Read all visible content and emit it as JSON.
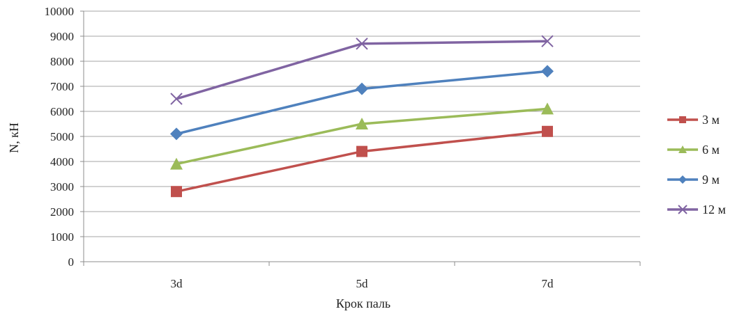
{
  "chart_data": {
    "type": "line",
    "categories": [
      "3d",
      "5d",
      "7d"
    ],
    "series": [
      {
        "name": "3 м",
        "values": [
          2800,
          4400,
          5200
        ],
        "color": "#c0504d",
        "marker": "square"
      },
      {
        "name": "6 м",
        "values": [
          3900,
          5500,
          6100
        ],
        "color": "#9bbb59",
        "marker": "triangle"
      },
      {
        "name": "9 м",
        "values": [
          5100,
          6900,
          7600
        ],
        "color": "#4f81bd",
        "marker": "diamond"
      },
      {
        "name": "12 м",
        "values": [
          6500,
          8700,
          8800
        ],
        "color": "#8064a2",
        "marker": "x"
      }
    ],
    "yticks": [
      "0",
      "1000",
      "2000",
      "3000",
      "4000",
      "5000",
      "6000",
      "7000",
      "8000",
      "9000",
      "10000"
    ],
    "ylim": [
      0,
      10000
    ],
    "xlabel": "Крок паль",
    "ylabel": "N, кН",
    "grid": "horizontal",
    "legend_position": "right"
  }
}
